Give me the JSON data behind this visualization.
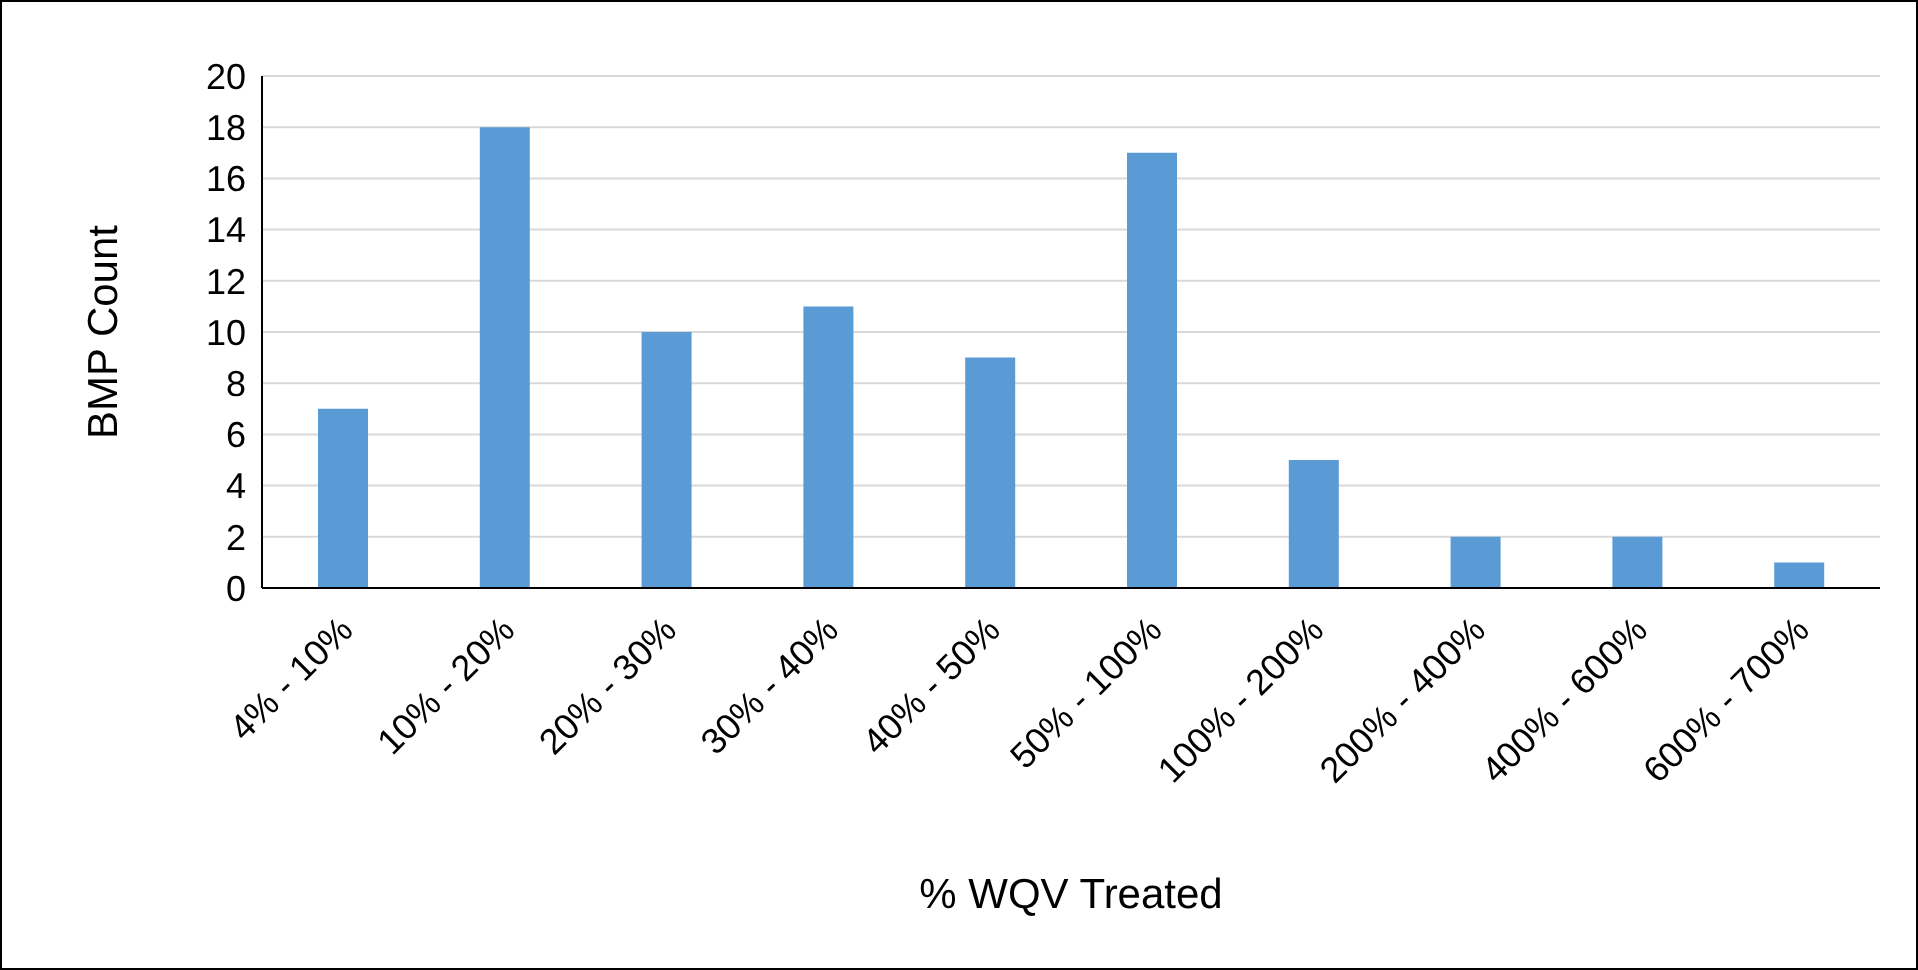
{
  "chart_data": {
    "type": "bar",
    "xlabel": "% WQV Treated",
    "ylabel": "BMP Count",
    "categories": [
      "4% - 10%",
      "10% - 20%",
      "20% - 30%",
      "30% - 40%",
      "40% - 50%",
      "50% - 100%",
      "100% - 200%",
      "200% - 400%",
      "400% - 600%",
      "600% - 700%"
    ],
    "values": [
      7,
      18,
      10,
      11,
      9,
      17,
      5,
      2,
      2,
      1
    ],
    "color": "#5b9bd5",
    "ylim": [
      0,
      20
    ],
    "yticks": [
      0,
      2,
      4,
      6,
      8,
      10,
      12,
      14,
      16,
      18,
      20
    ],
    "grid": "y",
    "legend": false
  }
}
